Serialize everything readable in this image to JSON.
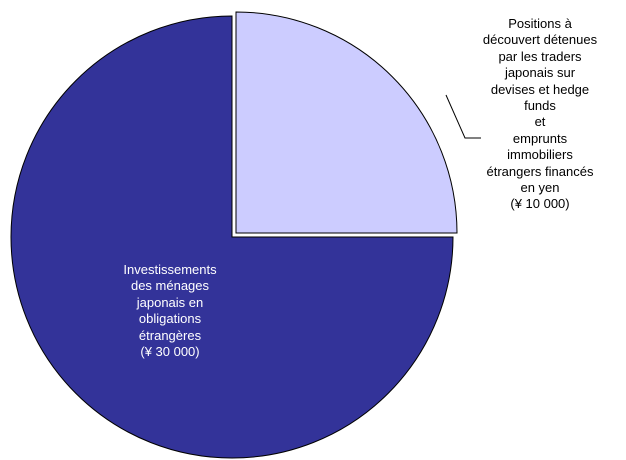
{
  "chart_data": {
    "type": "pie",
    "title": "",
    "slices": [
      {
        "label_lines": [
          "Investissements",
          "des ménages",
          "japonais en",
          "obligations",
          "étrangères",
          "(¥ 30 000)"
        ],
        "value": 30000,
        "color": "#333399",
        "exploded": false,
        "label_placement": "inside"
      },
      {
        "label_lines": [
          "Positions à",
          "découvert détenues",
          "par les traders",
          "japonais sur",
          "devises et hedge",
          "funds",
          "et",
          "emprunts",
          "immobiliers",
          "étrangers financés",
          "en yen",
          "(¥ 10 000)"
        ],
        "value": 10000,
        "color": "#ccccff",
        "exploded": true,
        "label_placement": "outside-right"
      }
    ],
    "start_angle": "12 o'clock, clockwise",
    "legend": "none"
  }
}
